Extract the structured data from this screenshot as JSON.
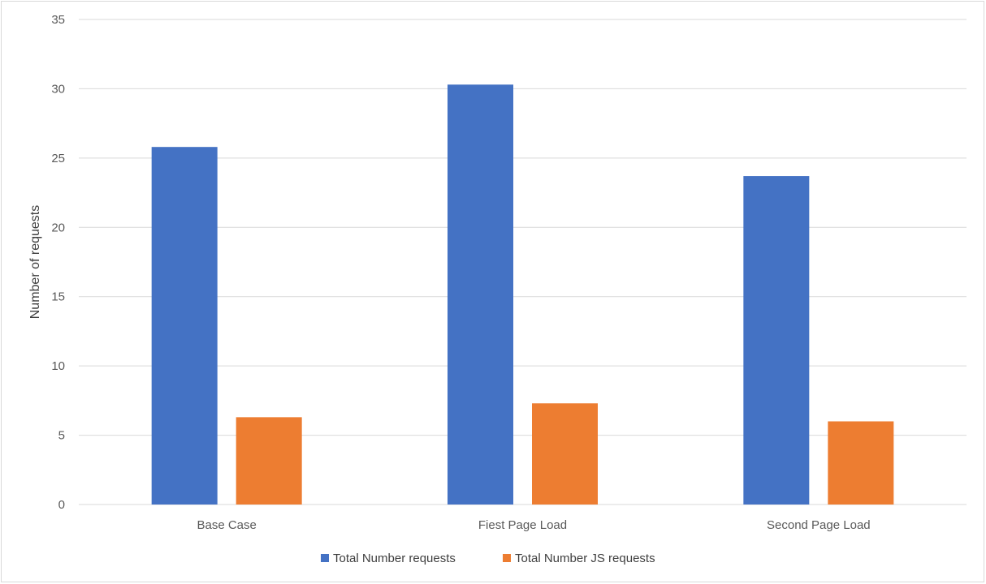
{
  "chart_data": {
    "type": "bar",
    "title": "",
    "xlabel": "",
    "ylabel": "Number of requests",
    "ylim": [
      0,
      35
    ],
    "yticks": [
      0,
      5,
      10,
      15,
      20,
      25,
      30,
      35
    ],
    "grid": true,
    "legend_position": "bottom",
    "categories": [
      "Base Case",
      "Fiest Page Load",
      "Second Page Load"
    ],
    "series": [
      {
        "name": "Total Number requests",
        "color": "#4472c4",
        "values": [
          25.8,
          30.3,
          23.7
        ]
      },
      {
        "name": "Total Number JS requests",
        "color": "#ed7d31",
        "values": [
          6.3,
          7.3,
          6.0
        ]
      }
    ]
  }
}
